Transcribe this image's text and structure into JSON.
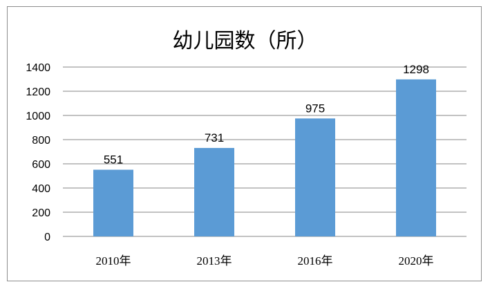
{
  "chart_data": {
    "type": "bar",
    "title": "幼儿园数（所）",
    "categories": [
      "2010年",
      "2013年",
      "2016年",
      "2020年"
    ],
    "values": [
      551,
      731,
      975,
      1298
    ],
    "ylim": [
      0,
      1400
    ],
    "yticks": [
      0,
      200,
      400,
      600,
      800,
      1000,
      1200,
      1400
    ],
    "xlabel": "",
    "ylabel": "",
    "grid": true,
    "legend": "none",
    "bar_color": "#5b9bd5",
    "grid_color": "#868686"
  }
}
